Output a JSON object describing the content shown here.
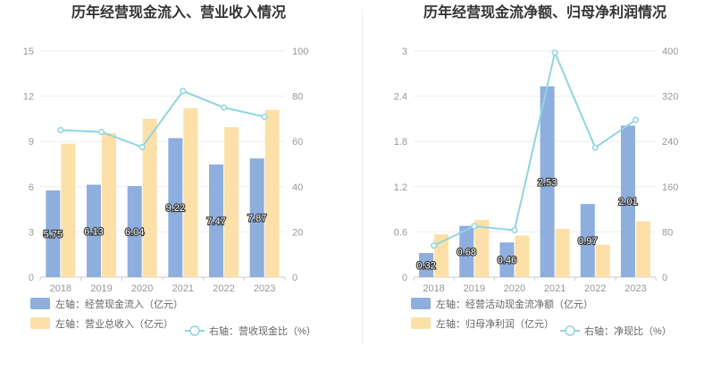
{
  "chart_data": [
    {
      "type": "bar",
      "title": "历年经营现金流入、营业收入情况",
      "categories": [
        "2018",
        "2019",
        "2020",
        "2021",
        "2022",
        "2023"
      ],
      "ylim_left": [
        0,
        15
      ],
      "yticks_left": [
        "0",
        "3",
        "6",
        "9",
        "12",
        "15"
      ],
      "ylim_right": [
        0,
        100
      ],
      "yticks_right": [
        "0",
        "20",
        "40",
        "60",
        "80",
        "100"
      ],
      "series": [
        {
          "name": "左轴：经营现金流入（亿元）",
          "kind": "bar",
          "axis": "left",
          "color": "#8eaedd",
          "values": [
            5.75,
            6.13,
            6.04,
            9.22,
            7.47,
            7.87
          ],
          "labels": [
            "5.75",
            "6.13",
            "6.04",
            "9.22",
            "7.47",
            "7.87"
          ]
        },
        {
          "name": "左轴：营业总收入（亿元）",
          "kind": "bar",
          "axis": "left",
          "color": "#fde0a8",
          "values": [
            8.85,
            9.55,
            10.5,
            11.2,
            9.95,
            11.1
          ]
        },
        {
          "name": "右轴：营收现金比（%）",
          "kind": "line",
          "axis": "right",
          "color": "#8fd6df",
          "values": [
            65.0,
            64.2,
            57.5,
            82.3,
            75.0,
            70.9
          ]
        }
      ],
      "grid": true,
      "legend": "bottom-left"
    },
    {
      "type": "bar",
      "title": "历年经营现金流净额、归母净利润情况",
      "categories": [
        "2018",
        "2019",
        "2020",
        "2021",
        "2022",
        "2023"
      ],
      "ylim_left": [
        0,
        3
      ],
      "yticks_left": [
        "0",
        "0.6",
        "1.2",
        "1.8",
        "2.4",
        "3"
      ],
      "ylim_right": [
        0,
        400
      ],
      "yticks_right": [
        "0",
        "80",
        "160",
        "240",
        "320",
        "400"
      ],
      "series": [
        {
          "name": "左轴：经营活动现金流净额（亿元）",
          "kind": "bar",
          "axis": "left",
          "color": "#8eaedd",
          "values": [
            0.32,
            0.68,
            0.46,
            2.53,
            0.97,
            2.01
          ],
          "labels": [
            "0.32",
            "0.68",
            "0.46",
            "2.53",
            "0.97",
            "2.01"
          ]
        },
        {
          "name": "左轴：归母净利润（亿元）",
          "kind": "bar",
          "axis": "left",
          "color": "#fde0a8",
          "values": [
            0.57,
            0.76,
            0.55,
            0.64,
            0.43,
            0.74
          ]
        },
        {
          "name": "右轴：净现比（%）",
          "kind": "line",
          "axis": "right",
          "color": "#8fd6df",
          "values": [
            56,
            90,
            83,
            397,
            229,
            278
          ]
        }
      ],
      "grid": true,
      "legend": "bottom-left"
    }
  ]
}
